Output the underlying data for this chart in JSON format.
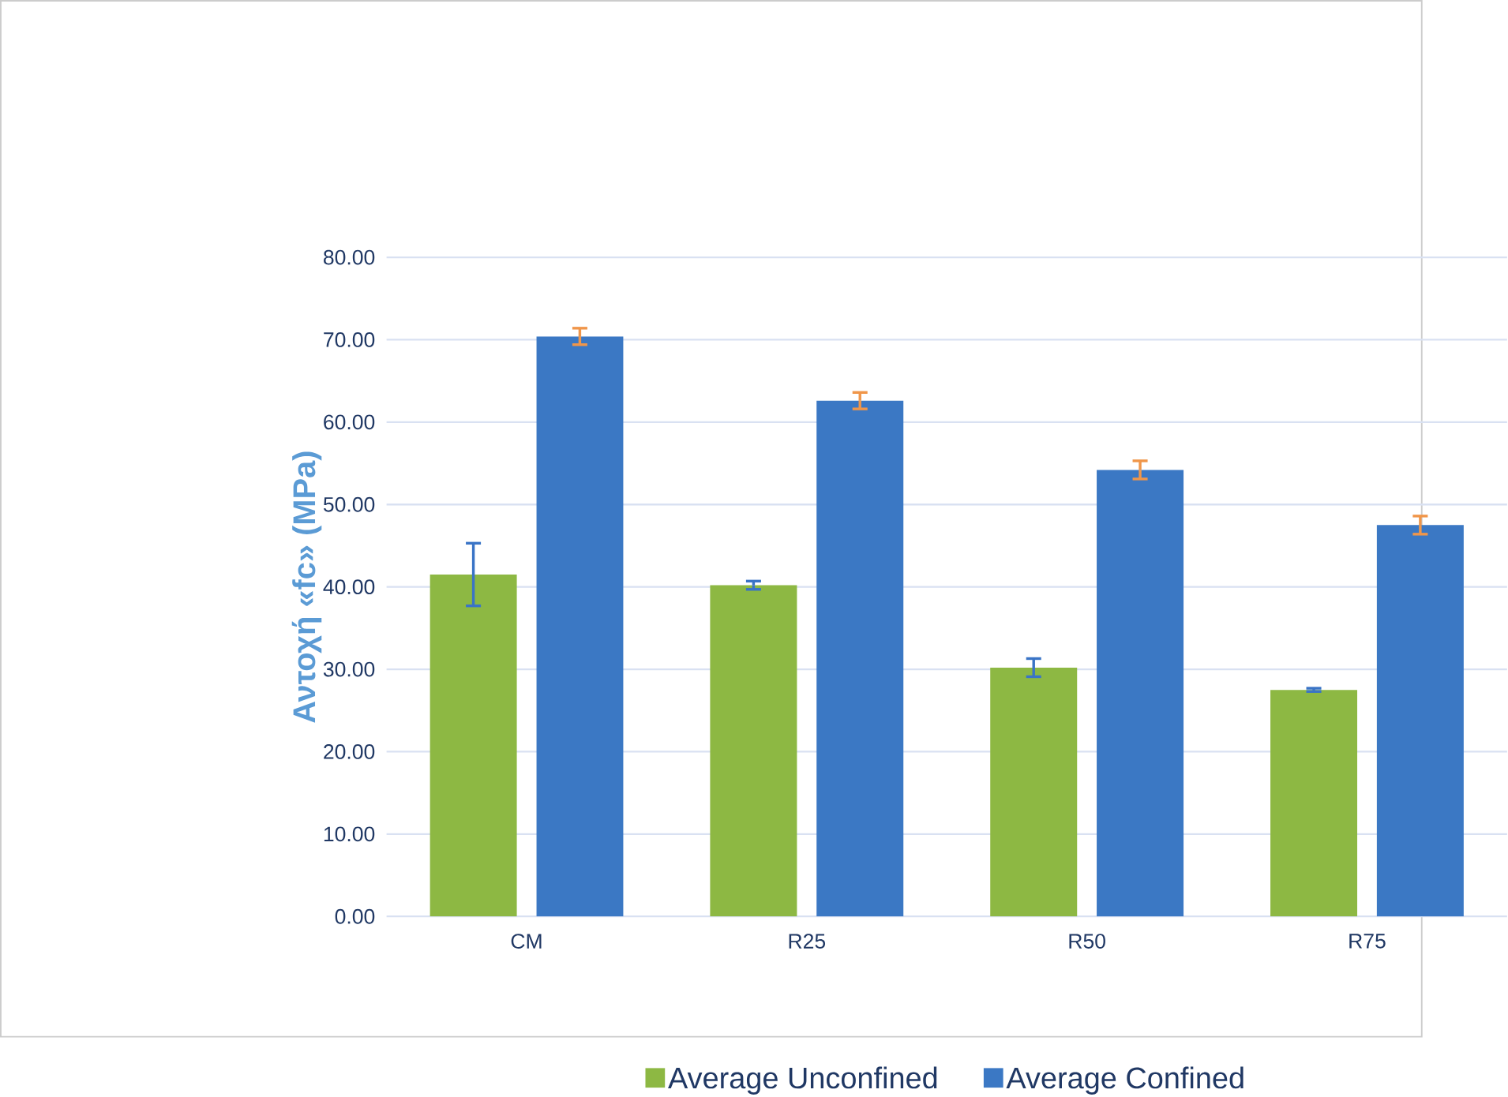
{
  "chart_data": {
    "type": "bar",
    "ylabel": "Αντοχή «fc» (MPa)",
    "categories": [
      "CM",
      "R25",
      "R50",
      "R75"
    ],
    "series": [
      {
        "name": "Average Unconfined",
        "color": "#8db843",
        "values": [
          41.5,
          40.2,
          30.2,
          27.5
        ],
        "errors": [
          3.8,
          0.5,
          1.1,
          0.2
        ]
      },
      {
        "name": "Average Confined",
        "color": "#3b78c4",
        "values": [
          70.4,
          62.6,
          54.2,
          47.5
        ],
        "errors": [
          1.0,
          1.0,
          1.1,
          1.1
        ]
      }
    ],
    "ylim": [
      0,
      80
    ],
    "yticks": [
      {
        "value": 0,
        "label": "0.00"
      },
      {
        "value": 10,
        "label": "10.00"
      },
      {
        "value": 20,
        "label": "20.00"
      },
      {
        "value": 30,
        "label": "30.00"
      },
      {
        "value": 40,
        "label": "40.00"
      },
      {
        "value": 50,
        "label": "50.00"
      },
      {
        "value": 60,
        "label": "60.00"
      },
      {
        "value": 70,
        "label": "70.00"
      },
      {
        "value": 80,
        "label": "80.00"
      }
    ],
    "grid": "y",
    "legend": "bottom"
  }
}
